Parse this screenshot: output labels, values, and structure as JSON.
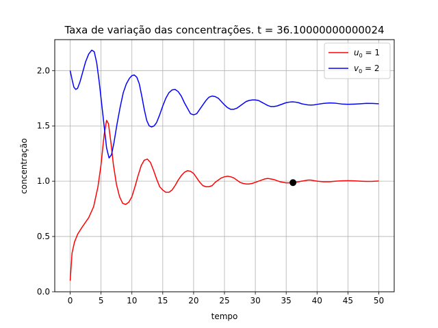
{
  "chart_data": {
    "type": "line",
    "title": "Taxa de variação das concentrações. t = 36.10000000000024",
    "xlabel": "tempo",
    "ylabel": "concentração",
    "xlim": [
      -2.5,
      52.5
    ],
    "ylim": [
      0.0,
      2.28
    ],
    "x_ticks": [
      0,
      5,
      10,
      15,
      20,
      25,
      30,
      35,
      40,
      45,
      50
    ],
    "y_ticks": [
      0.0,
      0.5,
      1.0,
      1.5,
      2.0
    ],
    "x_tick_labels": [
      "0",
      "5",
      "10",
      "15",
      "20",
      "25",
      "30",
      "35",
      "40",
      "45",
      "50"
    ],
    "y_tick_labels": [
      "0.0",
      "0.5",
      "1.0",
      "1.5",
      "2.0"
    ],
    "grid": true,
    "legend_position": "top-right",
    "series": [
      {
        "name": "u0 = 1",
        "legend_base": "u",
        "legend_sub": "0",
        "legend_rest": " = 1",
        "color": "#ff0000",
        "points": [
          [
            0,
            0.1
          ],
          [
            0.3,
            0.35
          ],
          [
            0.7,
            0.45
          ],
          [
            1.2,
            0.52
          ],
          [
            2,
            0.59
          ],
          [
            3,
            0.67
          ],
          [
            3.8,
            0.77
          ],
          [
            4.5,
            0.95
          ],
          [
            5,
            1.15
          ],
          [
            5.5,
            1.42
          ],
          [
            5.9,
            1.55
          ],
          [
            6.2,
            1.52
          ],
          [
            6.6,
            1.35
          ],
          [
            7,
            1.15
          ],
          [
            7.5,
            0.97
          ],
          [
            8,
            0.86
          ],
          [
            8.5,
            0.8
          ],
          [
            9,
            0.79
          ],
          [
            9.5,
            0.81
          ],
          [
            10,
            0.86
          ],
          [
            10.5,
            0.95
          ],
          [
            11,
            1.05
          ],
          [
            11.5,
            1.14
          ],
          [
            12,
            1.19
          ],
          [
            12.5,
            1.2
          ],
          [
            13,
            1.17
          ],
          [
            13.5,
            1.1
          ],
          [
            14,
            1.02
          ],
          [
            14.5,
            0.95
          ],
          [
            15,
            0.92
          ],
          [
            15.5,
            0.9
          ],
          [
            16,
            0.9
          ],
          [
            16.5,
            0.92
          ],
          [
            17,
            0.96
          ],
          [
            17.5,
            1.01
          ],
          [
            18,
            1.05
          ],
          [
            18.5,
            1.08
          ],
          [
            19,
            1.095
          ],
          [
            19.5,
            1.09
          ],
          [
            20,
            1.07
          ],
          [
            20.5,
            1.03
          ],
          [
            21,
            0.99
          ],
          [
            21.5,
            0.96
          ],
          [
            22,
            0.95
          ],
          [
            22.5,
            0.95
          ],
          [
            23,
            0.96
          ],
          [
            23.5,
            0.99
          ],
          [
            24,
            1.01
          ],
          [
            24.5,
            1.03
          ],
          [
            25,
            1.04
          ],
          [
            25.5,
            1.045
          ],
          [
            26,
            1.04
          ],
          [
            26.5,
            1.03
          ],
          [
            27,
            1.01
          ],
          [
            27.5,
            0.99
          ],
          [
            28,
            0.98
          ],
          [
            28.5,
            0.975
          ],
          [
            29,
            0.975
          ],
          [
            29.5,
            0.98
          ],
          [
            30,
            0.99
          ],
          [
            30.5,
            1.0
          ],
          [
            31,
            1.01
          ],
          [
            31.5,
            1.02
          ],
          [
            32,
            1.025
          ],
          [
            32.5,
            1.02
          ],
          [
            33,
            1.015
          ],
          [
            33.5,
            1.005
          ],
          [
            34,
            0.995
          ],
          [
            34.5,
            0.99
          ],
          [
            35,
            0.985
          ],
          [
            35.5,
            0.985
          ],
          [
            36,
            0.987
          ],
          [
            36.5,
            0.99
          ],
          [
            37,
            0.995
          ],
          [
            37.5,
            1.0
          ],
          [
            38,
            1.005
          ],
          [
            38.5,
            1.01
          ],
          [
            39,
            1.01
          ],
          [
            39.5,
            1.005
          ],
          [
            40,
            1.0
          ],
          [
            41,
            0.995
          ],
          [
            42,
            0.995
          ],
          [
            43,
            1.0
          ],
          [
            44,
            1.003
          ],
          [
            45,
            1.005
          ],
          [
            46,
            1.003
          ],
          [
            47,
            1.0
          ],
          [
            48,
            0.998
          ],
          [
            49,
            0.999
          ],
          [
            50,
            1.002
          ]
        ]
      },
      {
        "name": "v0 = 2",
        "legend_base": "v",
        "legend_sub": "0",
        "legend_rest": " = 2",
        "color": "#0000ff",
        "points": [
          [
            0,
            2.0
          ],
          [
            0.3,
            1.92
          ],
          [
            0.6,
            1.85
          ],
          [
            0.9,
            1.83
          ],
          [
            1.2,
            1.84
          ],
          [
            1.6,
            1.9
          ],
          [
            2,
            1.98
          ],
          [
            2.5,
            2.08
          ],
          [
            3,
            2.15
          ],
          [
            3.5,
            2.185
          ],
          [
            3.9,
            2.17
          ],
          [
            4.3,
            2.07
          ],
          [
            4.7,
            1.9
          ],
          [
            5.1,
            1.7
          ],
          [
            5.5,
            1.5
          ],
          [
            5.9,
            1.3
          ],
          [
            6.3,
            1.21
          ],
          [
            6.7,
            1.24
          ],
          [
            7.1,
            1.35
          ],
          [
            7.6,
            1.52
          ],
          [
            8.1,
            1.67
          ],
          [
            8.6,
            1.8
          ],
          [
            9.1,
            1.88
          ],
          [
            9.6,
            1.93
          ],
          [
            10,
            1.955
          ],
          [
            10.4,
            1.96
          ],
          [
            10.8,
            1.94
          ],
          [
            11.2,
            1.88
          ],
          [
            11.6,
            1.77
          ],
          [
            12,
            1.65
          ],
          [
            12.4,
            1.55
          ],
          [
            12.8,
            1.5
          ],
          [
            13.2,
            1.49
          ],
          [
            13.6,
            1.5
          ],
          [
            14,
            1.53
          ],
          [
            14.5,
            1.6
          ],
          [
            15,
            1.68
          ],
          [
            15.5,
            1.75
          ],
          [
            16,
            1.8
          ],
          [
            16.5,
            1.825
          ],
          [
            17,
            1.83
          ],
          [
            17.5,
            1.81
          ],
          [
            18,
            1.77
          ],
          [
            18.5,
            1.71
          ],
          [
            19,
            1.66
          ],
          [
            19.5,
            1.61
          ],
          [
            20,
            1.6
          ],
          [
            20.5,
            1.61
          ],
          [
            21,
            1.65
          ],
          [
            21.5,
            1.69
          ],
          [
            22,
            1.73
          ],
          [
            22.5,
            1.76
          ],
          [
            23,
            1.77
          ],
          [
            23.5,
            1.765
          ],
          [
            24,
            1.75
          ],
          [
            24.5,
            1.72
          ],
          [
            25,
            1.69
          ],
          [
            25.5,
            1.665
          ],
          [
            26,
            1.65
          ],
          [
            26.5,
            1.65
          ],
          [
            27,
            1.66
          ],
          [
            27.5,
            1.68
          ],
          [
            28,
            1.7
          ],
          [
            28.5,
            1.72
          ],
          [
            29,
            1.73
          ],
          [
            29.5,
            1.735
          ],
          [
            30,
            1.735
          ],
          [
            30.5,
            1.73
          ],
          [
            31,
            1.715
          ],
          [
            31.5,
            1.7
          ],
          [
            32,
            1.685
          ],
          [
            32.5,
            1.675
          ],
          [
            33,
            1.675
          ],
          [
            33.5,
            1.68
          ],
          [
            34,
            1.69
          ],
          [
            34.5,
            1.7
          ],
          [
            35,
            1.71
          ],
          [
            35.5,
            1.715
          ],
          [
            36,
            1.718
          ],
          [
            36.5,
            1.715
          ],
          [
            37,
            1.71
          ],
          [
            37.5,
            1.7
          ],
          [
            38,
            1.695
          ],
          [
            38.5,
            1.69
          ],
          [
            39,
            1.688
          ],
          [
            39.5,
            1.69
          ],
          [
            40,
            1.695
          ],
          [
            41,
            1.703
          ],
          [
            42,
            1.708
          ],
          [
            43,
            1.705
          ],
          [
            44,
            1.698
          ],
          [
            45,
            1.695
          ],
          [
            46,
            1.697
          ],
          [
            47,
            1.7
          ],
          [
            48,
            1.704
          ],
          [
            49,
            1.703
          ],
          [
            50,
            1.7
          ]
        ]
      }
    ],
    "marker": {
      "x": 36.1,
      "y": 0.987,
      "color": "#000000"
    }
  }
}
